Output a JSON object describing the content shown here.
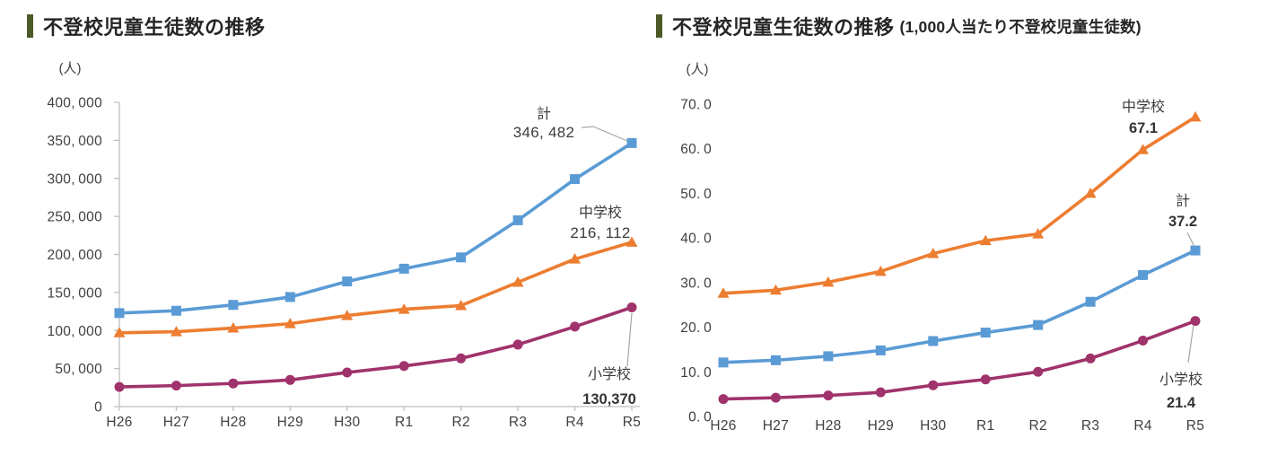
{
  "theme": {
    "title_accent_color": "#4b5a27",
    "title_text_color": "#262626",
    "axis_color": "#bfbfbf",
    "tick_text_color": "#404040",
    "annotation_text_color": "#3d3d3d",
    "annotation_value_bold_color": "#333333",
    "leader_line_color": "#a6a6a6",
    "page_bg": "#ffffff"
  },
  "chart_data": [
    {
      "type": "line",
      "title": "不登校児童生徒数の推移",
      "title_suffix": "",
      "unit_label": "(人)",
      "categories": [
        "H26",
        "H27",
        "H28",
        "H29",
        "H30",
        "R1",
        "R2",
        "R3",
        "R4",
        "R5"
      ],
      "ylim": [
        0,
        400000
      ],
      "ytick_step": 50000,
      "ytick_labels": [
        "0",
        "50,000",
        "100,000",
        "150,000",
        "200,000",
        "250,000",
        "300,000",
        "350,000",
        "400,000"
      ],
      "grid": false,
      "axes_visible": true,
      "legend_position": "end-of-line-annotations",
      "series": [
        {
          "name": "計",
          "marker": "square",
          "color": "#5b9bd5",
          "values": [
            122897,
            125991,
            133683,
            144031,
            164528,
            181272,
            196127,
            244940,
            299048,
            346482
          ],
          "annotation": {
            "label": "計",
            "value_text": "346, 482",
            "leader": true,
            "bold_value": false
          }
        },
        {
          "name": "中学校",
          "marker": "triangle",
          "color": "#ed7d31",
          "values": [
            97033,
            98408,
            103235,
            108999,
            119687,
            127922,
            132777,
            163442,
            193936,
            216112
          ],
          "annotation": {
            "label": "中学校",
            "value_text": "216, 112",
            "leader": false,
            "bold_value": false
          }
        },
        {
          "name": "小学校",
          "marker": "circle",
          "color": "#a0336b",
          "values": [
            25864,
            27583,
            30448,
            35032,
            44841,
            53350,
            63350,
            81498,
            105112,
            130370
          ],
          "annotation": {
            "label": "小学校",
            "value_text": "130,370",
            "leader": true,
            "bold_value": true
          }
        }
      ]
    },
    {
      "type": "line",
      "title": "不登校児童生徒数の推移",
      "title_suffix": "(1,000人当たり不登校児童生徒数)",
      "unit_label": "(人)",
      "categories": [
        "H26",
        "H27",
        "H28",
        "H29",
        "H30",
        "R1",
        "R2",
        "R3",
        "R4",
        "R5"
      ],
      "ylim": [
        0,
        70
      ],
      "ytick_step": 10,
      "ytick_labels": [
        "0.0",
        "10.0",
        "20.0",
        "30.0",
        "40.0",
        "50.0",
        "60.0",
        "70.0"
      ],
      "grid": false,
      "axes_visible": false,
      "legend_position": "end-of-line-annotations",
      "series": [
        {
          "name": "中学校",
          "marker": "triangle",
          "color": "#ed7d31",
          "values": [
            27.6,
            28.3,
            30.1,
            32.5,
            36.5,
            39.4,
            40.9,
            50.0,
            59.8,
            67.1
          ],
          "annotation": {
            "label": "中学校",
            "value_text": "67.1",
            "leader": false,
            "bold_value": true
          }
        },
        {
          "name": "計",
          "marker": "square",
          "color": "#5b9bd5",
          "values": [
            12.1,
            12.6,
            13.5,
            14.8,
            16.9,
            18.8,
            20.5,
            25.7,
            31.7,
            37.2
          ],
          "annotation": {
            "label": "計",
            "value_text": "37.2",
            "leader": true,
            "bold_value": true
          }
        },
        {
          "name": "小学校",
          "marker": "circle",
          "color": "#a0336b",
          "values": [
            3.9,
            4.2,
            4.7,
            5.4,
            7.0,
            8.3,
            10.0,
            13.0,
            17.0,
            21.4
          ],
          "annotation": {
            "label": "小学校",
            "value_text": "21.4",
            "leader": true,
            "bold_value": true
          }
        }
      ]
    }
  ]
}
